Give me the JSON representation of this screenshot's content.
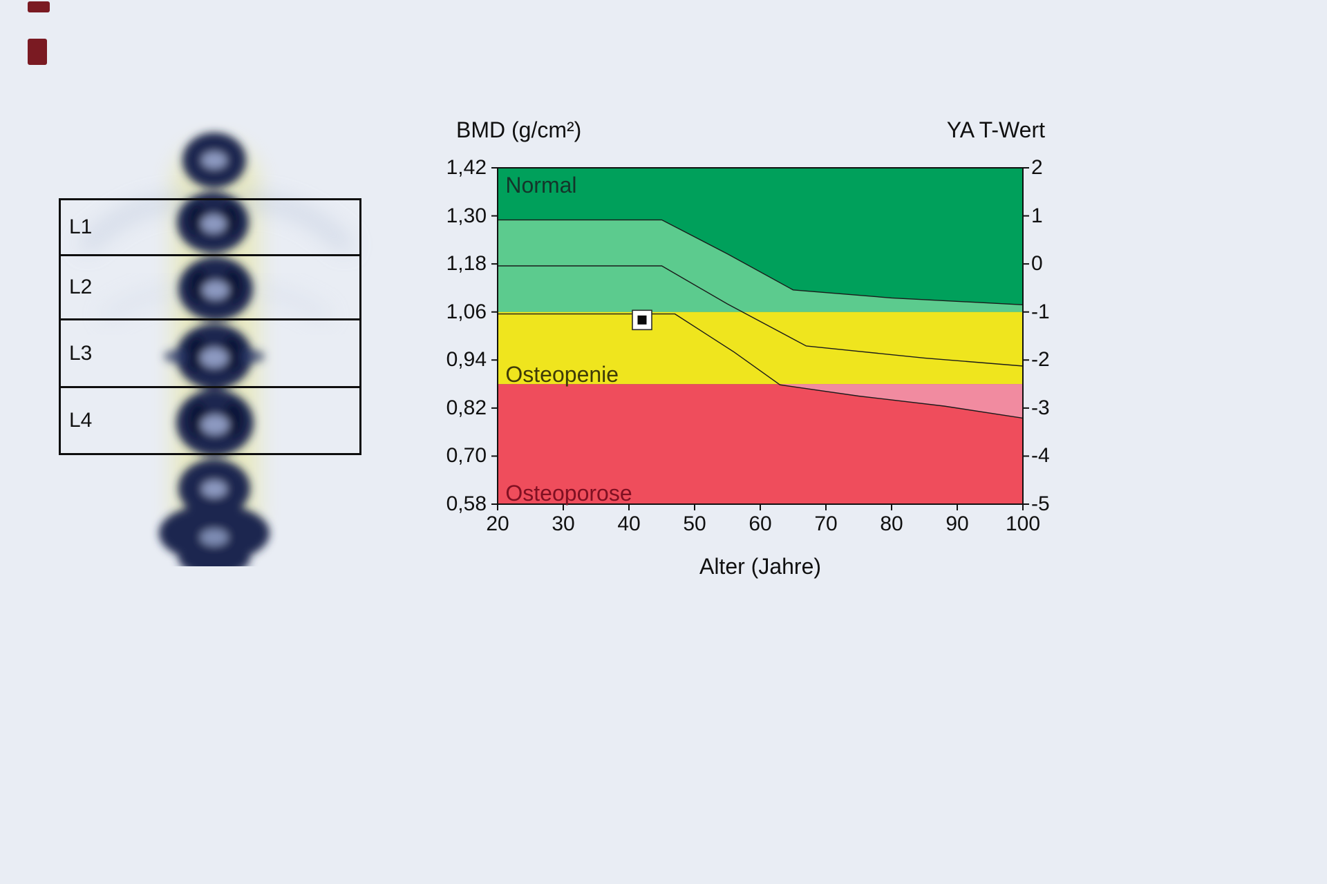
{
  "scan": {
    "regions": [
      "L1",
      "L2",
      "L3",
      "L4"
    ]
  },
  "chart_data": {
    "type": "area",
    "title_left": "BMD (g/cm²)",
    "title_right": "YA T-Wert",
    "xlabel": "Alter (Jahre)",
    "xlim": [
      20,
      100
    ],
    "ylim": [
      0.58,
      1.42
    ],
    "x_ticks": [
      20,
      30,
      40,
      50,
      60,
      70,
      80,
      90,
      100
    ],
    "y_left_ticks": [
      "1,42",
      "1,30",
      "1,18",
      "1,06",
      "0,94",
      "0,82",
      "0,70",
      "0,58"
    ],
    "y_right_ticks": [
      "2",
      "1",
      "0",
      "-1",
      "-2",
      "-3",
      "-4",
      "-5"
    ],
    "bands": {
      "yellow_top": 1.06,
      "yellow_bottom": 0.88
    },
    "curves": {
      "upper": [
        [
          20,
          1.29
        ],
        [
          45,
          1.29
        ],
        [
          55,
          1.205
        ],
        [
          65,
          1.115
        ],
        [
          80,
          1.095
        ],
        [
          100,
          1.078
        ]
      ],
      "mean": [
        [
          20,
          1.175
        ],
        [
          45,
          1.175
        ],
        [
          55,
          1.08
        ],
        [
          67,
          0.975
        ],
        [
          85,
          0.945
        ],
        [
          100,
          0.925
        ]
      ],
      "lower": [
        [
          20,
          1.055
        ],
        [
          47,
          1.055
        ],
        [
          56,
          0.96
        ],
        [
          63,
          0.878
        ],
        [
          75,
          0.85
        ],
        [
          88,
          0.825
        ],
        [
          100,
          0.795
        ]
      ]
    },
    "pink_wedge": [
      [
        63,
        0.88
      ],
      [
        75,
        0.85
      ],
      [
        88,
        0.825
      ],
      [
        100,
        0.795
      ],
      [
        100,
        0.88
      ]
    ],
    "patient_point": {
      "age": 42,
      "bmd": 1.04
    },
    "zone_labels": [
      {
        "text": "Normal",
        "age": 21.2,
        "bmd": 1.408,
        "color": "#14352a"
      },
      {
        "text": "Osteopenie",
        "age": 21.2,
        "bmd": 0.936,
        "color": "#3e3a08"
      },
      {
        "text": "Osteoporose",
        "age": 21.2,
        "bmd": 0.638,
        "color": "#801022"
      }
    ],
    "colors": {
      "green_dark": "#00a05b",
      "green_light": "#5ccb8e",
      "yellow": "#efe51e",
      "red": "#ef4d5c",
      "pink": "#f18ba0",
      "line": "#1a1a1a"
    }
  }
}
